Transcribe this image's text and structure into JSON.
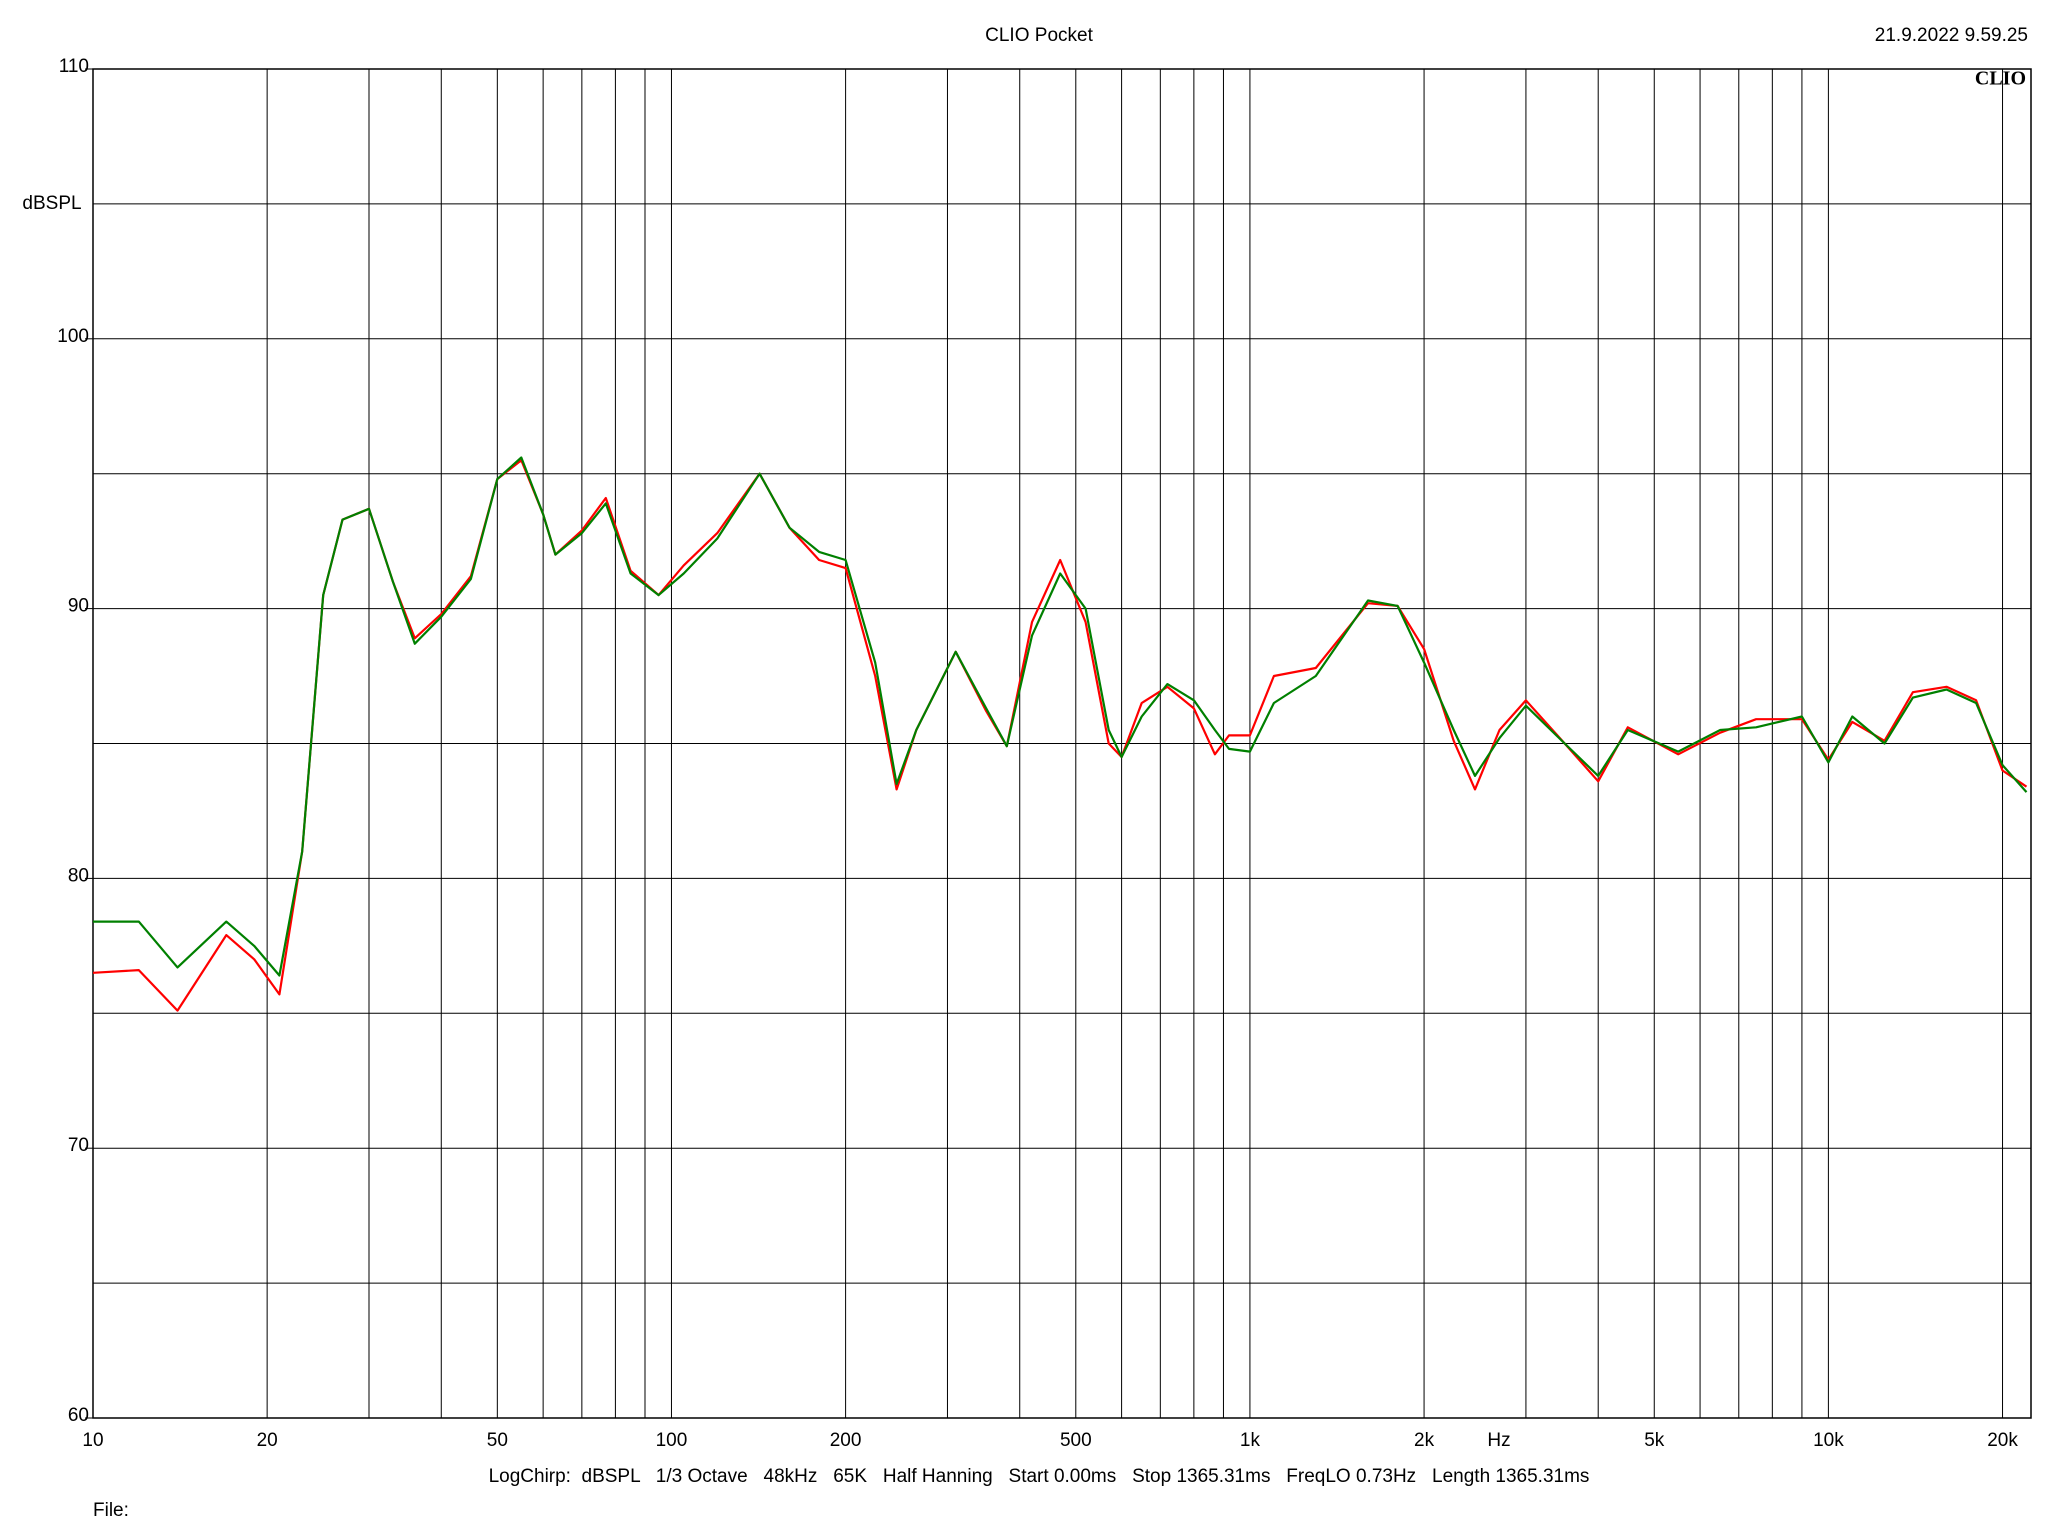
{
  "chart_data": {
    "type": "line",
    "title": "CLIO Pocket",
    "timestamp": "21.9.2022 9.59.25",
    "logo": "CLIO",
    "y_label": "dBSPL",
    "x_label": "Hz",
    "footer": "LogChirp:  dBSPL   1/3 Octave   48kHz   65K   Half Hanning   Start 0.00ms   Stop 1365.31ms   FreqLO 0.73Hz   Length 1365.31ms",
    "file_label": "File:",
    "xscale": "log",
    "grid": true,
    "xlim": [
      10,
      22400
    ],
    "ylim": [
      60,
      110
    ],
    "xticks": [
      10,
      20,
      50,
      100,
      200,
      500,
      {
        "value": 1000,
        "label": "1k"
      },
      {
        "value": 2000,
        "label": "2k"
      },
      {
        "value": 5000,
        "label": "5k"
      },
      {
        "value": 10000,
        "label": "10k"
      },
      {
        "value": 20000,
        "label": "20k"
      }
    ],
    "xminor": [
      30,
      40,
      60,
      70,
      80,
      90,
      300,
      400,
      600,
      700,
      800,
      900,
      3000,
      4000,
      6000,
      7000,
      8000,
      9000
    ],
    "yticks": [
      60,
      70,
      80,
      90,
      100,
      110
    ],
    "yminor": [
      65,
      75,
      85,
      95,
      105
    ],
    "x": [
      10,
      12,
      14,
      17,
      19,
      21,
      23,
      25,
      27,
      30,
      33,
      36,
      40,
      45,
      50,
      55,
      60,
      63,
      70,
      77,
      85,
      95,
      105,
      120,
      142,
      160,
      180,
      200,
      225,
      245,
      265,
      310,
      350,
      380,
      420,
      470,
      520,
      570,
      600,
      650,
      720,
      800,
      870,
      920,
      1000,
      1100,
      1300,
      1600,
      1800,
      2000,
      2250,
      2450,
      2700,
      3000,
      3500,
      4000,
      4500,
      5500,
      6500,
      7500,
      9000,
      10000,
      11000,
      12500,
      14000,
      16000,
      18000,
      20000,
      22000
    ],
    "series": [
      {
        "color": "#ff0000",
        "values": [
          76.5,
          76.6,
          75.1,
          77.9,
          77.0,
          75.7,
          81,
          90.5,
          93.3,
          93.7,
          91,
          88.9,
          89.8,
          91.2,
          94.8,
          95.5,
          93.5,
          92,
          92.9,
          94.1,
          91.4,
          90.5,
          91.6,
          92.8,
          95,
          93,
          91.8,
          91.5,
          87.5,
          83.3,
          85.5,
          88.4,
          86.2,
          84.9,
          89.5,
          91.8,
          89.5,
          85,
          84.5,
          86.5,
          87.1,
          86.3,
          84.6,
          85.3,
          85.3,
          87.5,
          87.8,
          90.2,
          90.1,
          88.5,
          85.1,
          83.3,
          85.5,
          86.6,
          85,
          83.6,
          85.6,
          84.6,
          85.4,
          85.9,
          85.9,
          84.4,
          85.8,
          85.1,
          86.9,
          87.1,
          86.6,
          84,
          83.4
        ]
      },
      {
        "color": "#008000",
        "values": [
          78.4,
          78.4,
          76.7,
          78.4,
          77.5,
          76.4,
          81,
          90.5,
          93.3,
          93.7,
          91,
          88.7,
          89.7,
          91.1,
          94.8,
          95.6,
          93.5,
          92,
          92.8,
          93.9,
          91.3,
          90.5,
          91.3,
          92.6,
          95,
          93,
          92.1,
          91.8,
          88,
          83.5,
          85.5,
          88.4,
          86.3,
          84.9,
          89,
          91.3,
          90,
          85.5,
          84.5,
          86,
          87.2,
          86.6,
          85.5,
          84.8,
          84.7,
          86.5,
          87.5,
          90.3,
          90.1,
          88,
          85.5,
          83.8,
          85.2,
          86.4,
          85,
          83.8,
          85.5,
          84.7,
          85.5,
          85.6,
          86,
          84.3,
          86,
          85,
          86.7,
          87,
          86.5,
          84.2,
          83.2
        ]
      }
    ]
  }
}
